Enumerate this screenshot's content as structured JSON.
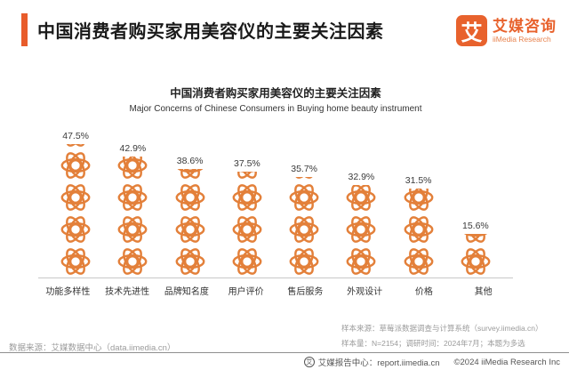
{
  "header": {
    "title": "中国消费者购买家用美容仪的主要关注因素",
    "logo": {
      "mark": "艾",
      "name_cn": "艾媒咨询",
      "name_en": "iiMedia Research"
    }
  },
  "chart_data": {
    "type": "bar",
    "style": "pictograph-stacked-icons",
    "title": "中国消费者购买家用美容仪的主要关注因素",
    "subtitle": "Major Concerns of Chinese Consumers in Buying home beauty instrument",
    "categories": [
      "功能多样性",
      "技术先进性",
      "品牌知名度",
      "用户评价",
      "售后服务",
      "外观设计",
      "价格",
      "其他"
    ],
    "values": [
      47.5,
      42.9,
      38.6,
      37.5,
      35.7,
      32.9,
      31.5,
      15.6
    ],
    "value_labels": [
      "47.5%",
      "42.9%",
      "38.6%",
      "37.5%",
      "35.7%",
      "32.9%",
      "31.5%",
      "15.6%"
    ],
    "unit": "%",
    "ylim": [
      0,
      50
    ],
    "grid": false,
    "legend": false,
    "bar_color": "#e3803a",
    "icon_name": "atom-flower-icon"
  },
  "footer": {
    "data_source": "数据来源：艾媒数据中心（data.iimedia.cn）",
    "sample_source": "样本来源：草莓派数据调查与计算系统（survey.iimedia.cn）",
    "sample_info": "样本量：N=2154；调研时间：2024年7月；本题为多选",
    "report_center_icon_glyph": "艾",
    "report_center": "艾媒报告中心：report.iimedia.cn",
    "copyright": "©2024 iiMedia Research Inc"
  },
  "colors": {
    "accent": "#e85c2b",
    "logo_orange": "#e8622d",
    "icon_orange": "#e3803a",
    "muted_text": "#9b9b9b"
  }
}
